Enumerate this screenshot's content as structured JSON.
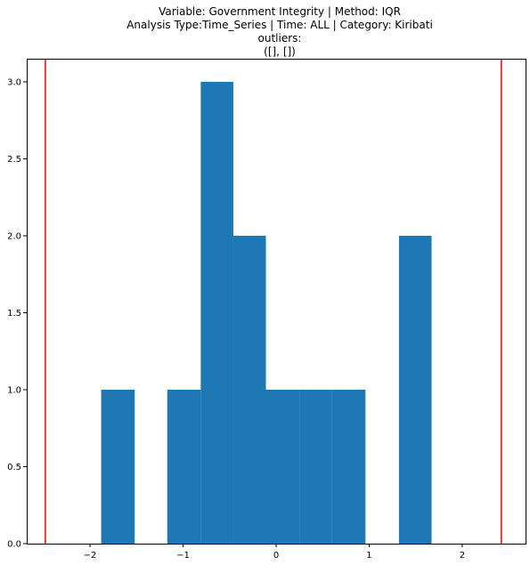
{
  "chart_data": {
    "type": "bar",
    "title_lines": [
      "Variable: Government Integrity | Method: IQR",
      "Analysis Type:Time_Series | Time: ALL | Category: Kiribati",
      "outliers:",
      "([], [])"
    ],
    "xlabel": "",
    "ylabel": "",
    "xlim": [
      -2.68,
      2.68
    ],
    "ylim": [
      0,
      3.15
    ],
    "x_ticks": [
      -2,
      -1,
      0,
      1,
      2
    ],
    "x_tick_labels": [
      "−2",
      "−1",
      "0",
      "1",
      "2"
    ],
    "y_ticks": [
      0.0,
      0.5,
      1.0,
      1.5,
      2.0,
      2.5,
      3.0
    ],
    "y_tick_labels": [
      "0.0",
      "0.5",
      "1.0",
      "1.5",
      "2.0",
      "2.5",
      "3.0"
    ],
    "bins": [
      {
        "x0": -1.88,
        "x1": -1.52,
        "count": 1
      },
      {
        "x0": -1.52,
        "x1": -1.17,
        "count": 0
      },
      {
        "x0": -1.17,
        "x1": -0.81,
        "count": 1
      },
      {
        "x0": -0.81,
        "x1": -0.46,
        "count": 3
      },
      {
        "x0": -0.46,
        "x1": -0.11,
        "count": 2
      },
      {
        "x0": -0.11,
        "x1": 0.25,
        "count": 1
      },
      {
        "x0": 0.25,
        "x1": 0.6,
        "count": 1
      },
      {
        "x0": 0.6,
        "x1": 0.96,
        "count": 1
      },
      {
        "x0": 0.96,
        "x1": 1.32,
        "count": 0
      },
      {
        "x0": 1.32,
        "x1": 1.67,
        "count": 2
      }
    ],
    "bar_color": "#1f77b4",
    "vlines": [
      {
        "x": -2.48,
        "color": "#ff0000"
      },
      {
        "x": 2.42,
        "color": "#ff0000"
      }
    ],
    "grid": false,
    "legend": "none"
  }
}
